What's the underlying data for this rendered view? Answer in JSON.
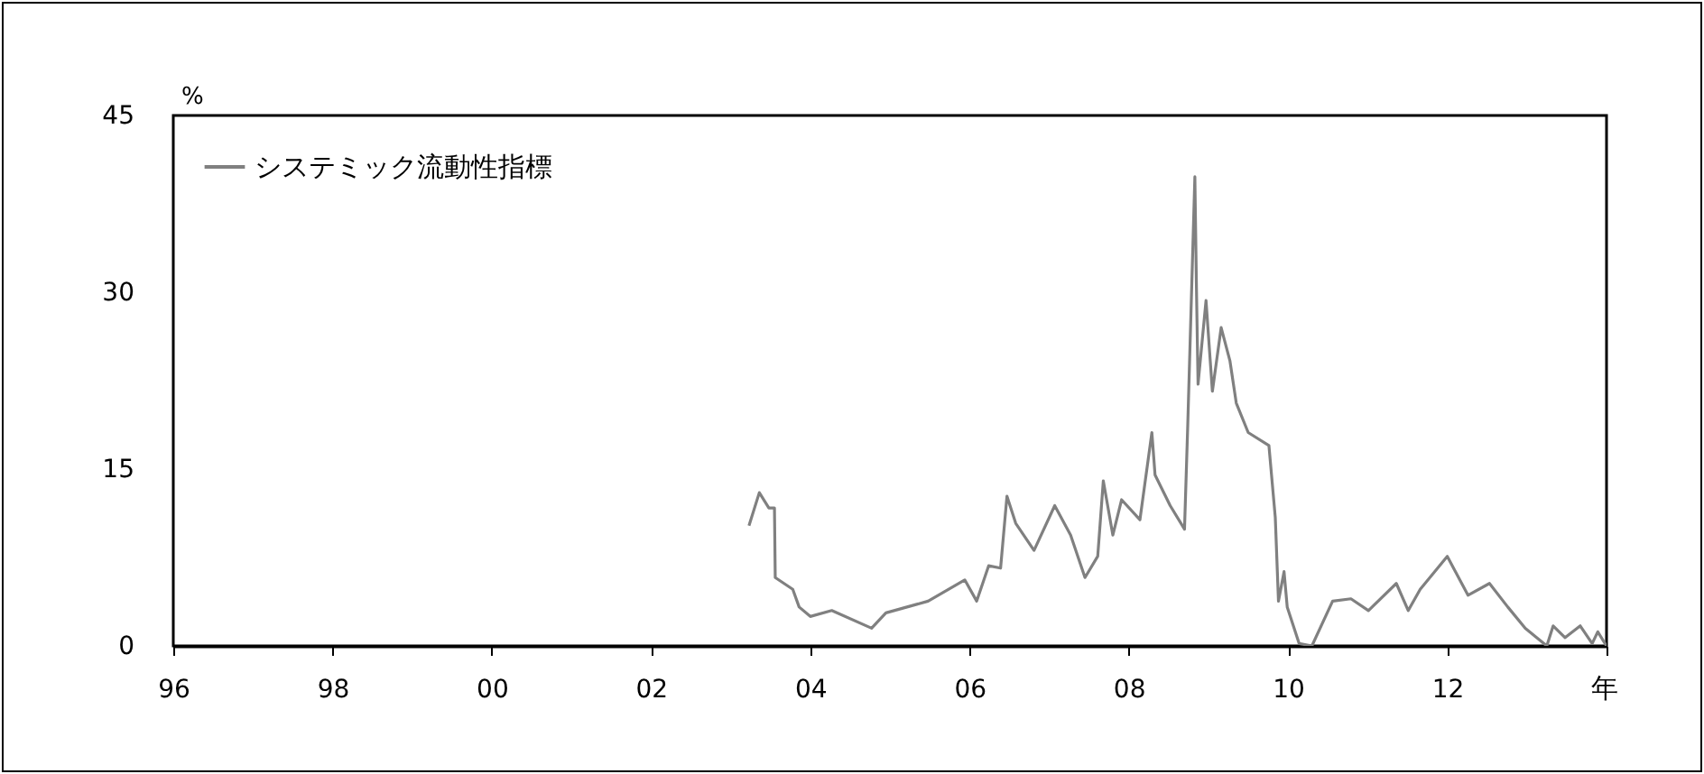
{
  "chart_data": {
    "type": "line",
    "xlabel": "年",
    "ylabel": "%",
    "legend": "top left",
    "grid": false,
    "xlim": [
      1996,
      2014
    ],
    "xticks": [
      {
        "value": 1996,
        "label": "96"
      },
      {
        "value": 1998,
        "label": "98"
      },
      {
        "value": 2000,
        "label": "00"
      },
      {
        "value": 2002,
        "label": "02"
      },
      {
        "value": 2004,
        "label": "04"
      },
      {
        "value": 2006,
        "label": "06"
      },
      {
        "value": 2008,
        "label": "08"
      },
      {
        "value": 2010,
        "label": "10"
      },
      {
        "value": 2012,
        "label": "12"
      },
      {
        "value": 2014,
        "label": null
      }
    ],
    "ylim": [
      0,
      45
    ],
    "yticks": [
      0,
      15,
      30,
      45
    ],
    "x": [
      2003.23,
      2003.36,
      2003.48,
      2003.55,
      2003.56,
      2003.78,
      2003.86,
      2004.0,
      2004.27,
      2004.77,
      2004.95,
      2005.48,
      2005.94,
      2006.09,
      2006.24,
      2006.39,
      2006.47,
      2006.58,
      2006.81,
      2007.07,
      2007.27,
      2007.45,
      2007.61,
      2007.68,
      2007.8,
      2007.91,
      2008.14,
      2008.29,
      2008.33,
      2008.52,
      2008.7,
      2008.74,
      2008.83,
      2008.85,
      2008.87,
      2008.97,
      2009.05,
      2009.16,
      2009.27,
      2009.35,
      2009.5,
      2009.76,
      2009.84,
      2009.88,
      2009.95,
      2009.99,
      2010.14,
      2010.3,
      2010.56,
      2010.79,
      2011.01,
      2011.36,
      2011.51,
      2011.66,
      2012.0,
      2012.26,
      2012.53,
      2012.76,
      2012.98,
      2013.25,
      2013.33,
      2013.48,
      2013.67,
      2013.82,
      2013.89,
      2014.0
    ],
    "series": [
      {
        "name": "システミック流動性指標",
        "color": "#808080",
        "values": [
          10.2,
          13.0,
          11.7,
          11.7,
          5.8,
          4.8,
          3.3,
          2.5,
          3.0,
          1.5,
          2.8,
          3.8,
          5.6,
          3.8,
          6.8,
          6.6,
          12.7,
          10.4,
          8.1,
          11.9,
          9.4,
          5.8,
          7.6,
          14.0,
          9.4,
          12.4,
          10.7,
          18.1,
          14.5,
          11.9,
          9.9,
          18.6,
          39.8,
          30.3,
          22.2,
          29.3,
          21.6,
          27.0,
          24.2,
          20.6,
          18.1,
          17.0,
          10.9,
          3.8,
          6.3,
          3.3,
          0.2,
          0,
          3.8,
          4.0,
          3.0,
          5.3,
          3.0,
          4.8,
          7.6,
          4.3,
          5.3,
          3.3,
          1.5,
          0,
          1.7,
          0.7,
          1.7,
          0.2,
          1.2,
          0
        ]
      }
    ]
  }
}
